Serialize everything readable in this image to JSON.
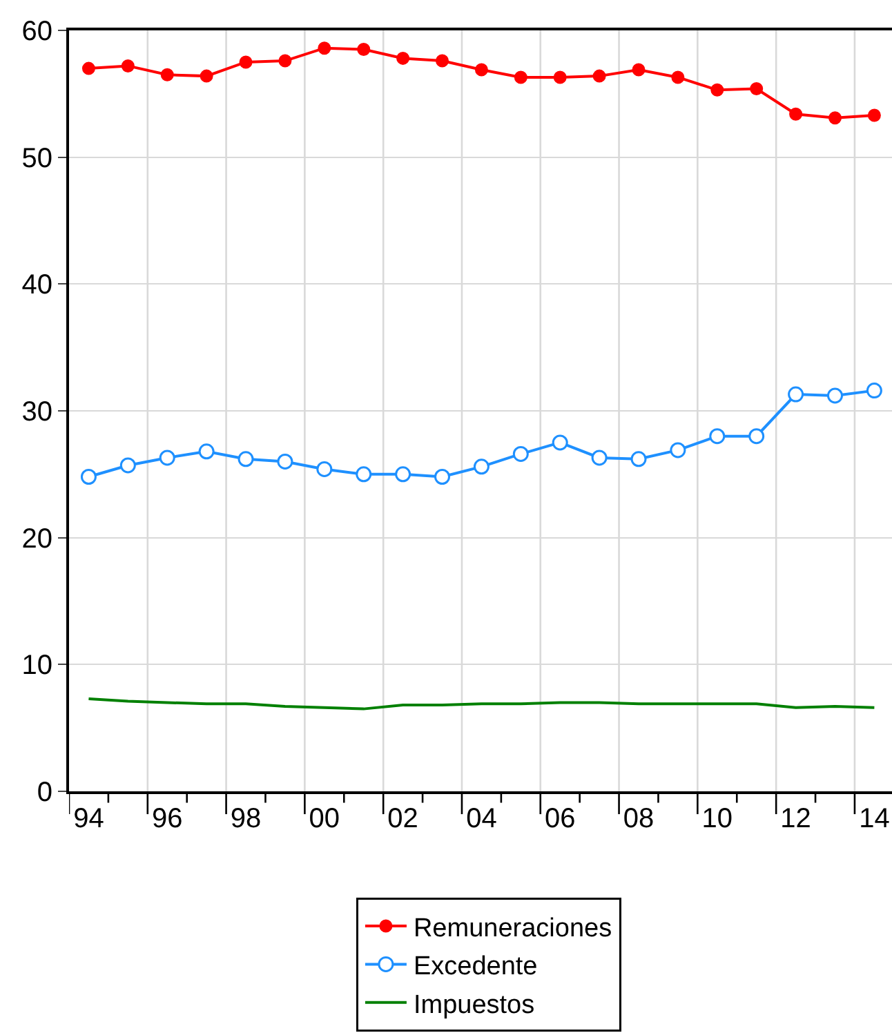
{
  "chart_data": {
    "type": "line",
    "x": [
      1994,
      1995,
      1996,
      1997,
      1998,
      1999,
      2000,
      2001,
      2002,
      2003,
      2004,
      2005,
      2006,
      2007,
      2008,
      2009,
      2010,
      2011,
      2012,
      2013,
      2014
    ],
    "series": [
      {
        "name": "Remuneraciones",
        "color": "#ff0000",
        "marker": "circle",
        "values": [
          57.0,
          57.2,
          56.5,
          56.4,
          57.5,
          57.6,
          58.6,
          58.5,
          57.8,
          57.6,
          56.9,
          56.3,
          56.3,
          56.4,
          56.9,
          56.3,
          55.3,
          55.4,
          53.4,
          53.1,
          53.3
        ]
      },
      {
        "name": "Excedente",
        "color": "#1e90ff",
        "marker": "circle-open",
        "values": [
          24.8,
          25.7,
          26.3,
          26.8,
          26.2,
          26.0,
          25.4,
          25.0,
          25.0,
          24.8,
          25.6,
          26.6,
          27.5,
          26.3,
          26.2,
          26.9,
          28.0,
          28.0,
          31.3,
          31.2,
          31.6
        ]
      },
      {
        "name": "Impuestos",
        "color": "#008000",
        "marker": "none",
        "values": [
          7.3,
          7.1,
          7.0,
          6.9,
          6.9,
          6.7,
          6.6,
          6.5,
          6.8,
          6.8,
          6.9,
          6.9,
          7.0,
          7.0,
          6.9,
          6.9,
          6.9,
          6.9,
          6.6,
          6.7,
          6.6
        ]
      }
    ],
    "xlim": [
      1993.5,
      2014.45
    ],
    "xticks": [
      {
        "value": 1993.5,
        "label": null
      },
      {
        "value": 1994,
        "label": "94"
      },
      {
        "value": 1994.5,
        "label": null
      },
      {
        "value": 1995.5,
        "label": null
      },
      {
        "value": 1996,
        "label": "96"
      },
      {
        "value": 1996.5,
        "label": null
      },
      {
        "value": 1997.5,
        "label": null
      },
      {
        "value": 1998,
        "label": "98"
      },
      {
        "value": 1998.5,
        "label": null
      },
      {
        "value": 1999.5,
        "label": null
      },
      {
        "value": 2000,
        "label": "00"
      },
      {
        "value": 2000.5,
        "label": null
      },
      {
        "value": 2001.5,
        "label": null
      },
      {
        "value": 2002,
        "label": "02"
      },
      {
        "value": 2002.5,
        "label": null
      },
      {
        "value": 2003.5,
        "label": null
      },
      {
        "value": 2004,
        "label": "04"
      },
      {
        "value": 2004.5,
        "label": null
      },
      {
        "value": 2005.5,
        "label": null
      },
      {
        "value": 2006,
        "label": "06"
      },
      {
        "value": 2006.5,
        "label": null
      },
      {
        "value": 2007.5,
        "label": null
      },
      {
        "value": 2008,
        "label": "08"
      },
      {
        "value": 2008.5,
        "label": null
      },
      {
        "value": 2009.5,
        "label": null
      },
      {
        "value": 2010,
        "label": "10"
      },
      {
        "value": 2010.5,
        "label": null
      },
      {
        "value": 2011.5,
        "label": null
      },
      {
        "value": 2012,
        "label": "12"
      },
      {
        "value": 2012.5,
        "label": null
      },
      {
        "value": 2013.5,
        "label": null
      },
      {
        "value": 2014,
        "label": "14"
      }
    ],
    "ylim": [
      0,
      60
    ],
    "yticks": [
      0,
      10,
      20,
      30,
      40,
      50,
      60
    ],
    "grid": true,
    "legend": "bottom",
    "line_style": "solid"
  }
}
